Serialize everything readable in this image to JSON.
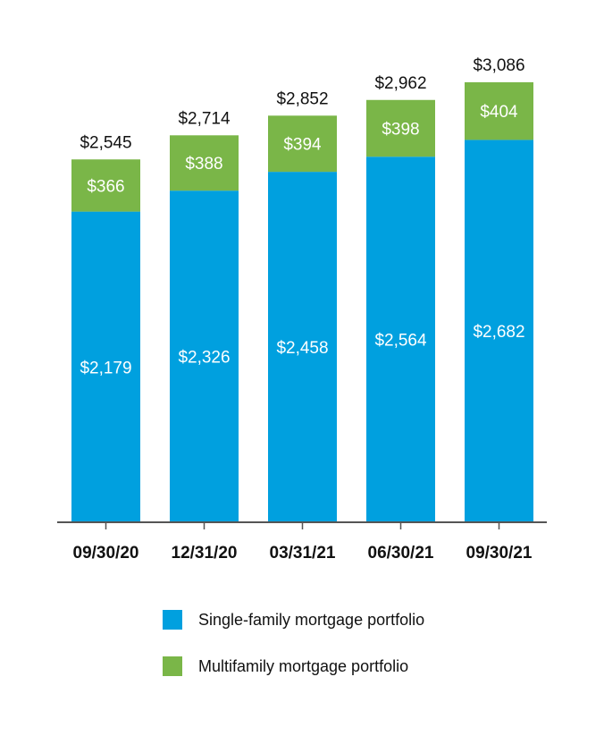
{
  "colors": {
    "single_family": "#00a0df",
    "multifamily": "#7ab648",
    "axis": "#555555"
  },
  "chart_data": {
    "type": "bar",
    "stacked": true,
    "categories": [
      "09/30/20",
      "12/31/20",
      "03/31/21",
      "06/30/21",
      "09/30/21"
    ],
    "series": [
      {
        "name": "Single-family mortgage portfolio",
        "values": [
          2179,
          2326,
          2458,
          2564,
          2682
        ],
        "labels": [
          "$2,179",
          "$2,326",
          "$2,458",
          "$2,564",
          "$2,682"
        ]
      },
      {
        "name": "Multifamily mortgage portfolio",
        "values": [
          366,
          388,
          394,
          398,
          404
        ],
        "labels": [
          "$366",
          "$388",
          "$394",
          "$398",
          "$404"
        ]
      }
    ],
    "totals": [
      2545,
      2714,
      2852,
      2962,
      3086
    ],
    "total_labels": [
      "$2,545",
      "$2,714",
      "$2,852",
      "$2,962",
      "$3,086"
    ],
    "ylim": [
      0,
      3086
    ],
    "grid": false,
    "legend_position": "bottom"
  },
  "legend": {
    "items": [
      {
        "label": "Single-family mortgage portfolio"
      },
      {
        "label": "Multifamily mortgage portfolio"
      }
    ]
  }
}
